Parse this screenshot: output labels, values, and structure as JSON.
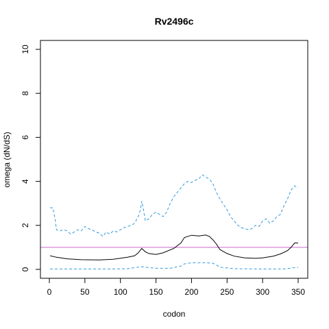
{
  "chart_data": {
    "type": "line",
    "title": "Rv2496c",
    "xlabel": "codon",
    "ylabel": "omega (dN/dS)",
    "xlim": [
      0,
      350
    ],
    "ylim": [
      0,
      10
    ],
    "xticks": [
      0,
      50,
      100,
      150,
      200,
      250,
      300,
      350
    ],
    "yticks": [
      0,
      2,
      4,
      6,
      8,
      10
    ],
    "grid": false,
    "legend": "none",
    "reference_line": {
      "y": 1,
      "color": "#cc66cc"
    },
    "series": [
      {
        "style": "solid",
        "color": "#000000",
        "x": [
          1,
          10,
          25,
          45,
          70,
          90,
          110,
          120,
          125,
          130,
          135,
          140,
          150,
          160,
          175,
          185,
          190,
          200,
          210,
          220,
          225,
          230,
          235,
          240,
          250,
          260,
          275,
          290,
          300,
          315,
          325,
          335,
          340,
          345,
          350
        ],
        "y": [
          0.62,
          0.55,
          0.48,
          0.44,
          0.43,
          0.46,
          0.55,
          0.62,
          0.75,
          0.95,
          0.8,
          0.72,
          0.68,
          0.75,
          0.95,
          1.2,
          1.45,
          1.55,
          1.52,
          1.56,
          1.5,
          1.35,
          1.15,
          0.9,
          0.72,
          0.6,
          0.52,
          0.5,
          0.52,
          0.6,
          0.7,
          0.85,
          1.0,
          1.2,
          1.2
        ]
      },
      {
        "style": "dashed",
        "color": "#3399dd",
        "x": [
          1,
          5,
          8,
          10,
          15,
          20,
          25,
          30,
          35,
          40,
          45,
          50,
          55,
          60,
          65,
          70,
          75,
          80,
          85,
          90,
          95,
          100,
          105,
          110,
          115,
          120,
          125,
          128,
          130,
          132,
          135,
          140,
          145,
          150,
          155,
          160,
          165,
          170,
          175,
          180,
          185,
          190,
          195,
          200,
          205,
          210,
          215,
          220,
          225,
          230,
          235,
          240,
          245,
          250,
          255,
          260,
          265,
          270,
          275,
          280,
          285,
          290,
          295,
          300,
          305,
          310,
          315,
          320,
          325,
          330,
          335,
          340,
          345,
          350
        ],
        "y": [
          2.8,
          2.8,
          2.3,
          1.8,
          1.75,
          1.8,
          1.75,
          1.6,
          1.7,
          1.8,
          1.75,
          1.95,
          1.85,
          1.8,
          1.7,
          1.65,
          1.5,
          1.7,
          1.6,
          1.75,
          1.7,
          1.8,
          1.9,
          1.95,
          2.0,
          2.1,
          2.4,
          2.7,
          3.1,
          2.8,
          2.2,
          2.3,
          2.5,
          2.6,
          2.5,
          2.4,
          2.6,
          3.0,
          3.3,
          3.5,
          3.7,
          3.9,
          4.0,
          3.95,
          4.05,
          4.1,
          4.3,
          4.2,
          4.1,
          3.9,
          3.5,
          3.2,
          2.95,
          2.7,
          2.4,
          2.2,
          2.0,
          1.9,
          1.85,
          1.8,
          1.85,
          2.0,
          1.95,
          2.2,
          2.3,
          2.1,
          2.2,
          2.4,
          2.5,
          2.9,
          3.2,
          3.6,
          3.8,
          3.7
        ]
      },
      {
        "style": "dashed",
        "color": "#3399dd",
        "x": [
          1,
          30,
          60,
          90,
          110,
          125,
          130,
          135,
          150,
          170,
          185,
          190,
          200,
          220,
          230,
          235,
          240,
          260,
          300,
          330,
          345,
          350
        ],
        "y": [
          0.02,
          0.02,
          0.02,
          0.02,
          0.03,
          0.1,
          0.12,
          0.1,
          0.05,
          0.05,
          0.15,
          0.25,
          0.3,
          0.3,
          0.28,
          0.2,
          0.1,
          0.03,
          0.02,
          0.02,
          0.08,
          0.1
        ]
      }
    ]
  }
}
